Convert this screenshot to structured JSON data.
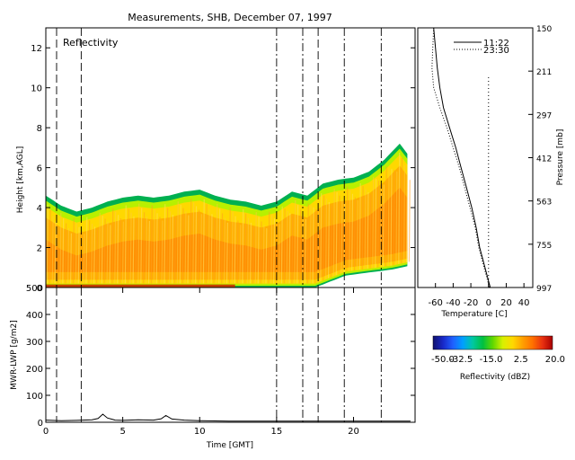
{
  "title": "Measurements, SHB, December 07, 1997",
  "chart_data": [
    {
      "type": "heatmap",
      "panel_label": "Reflectivity",
      "xlabel": "Time [GMT]",
      "ylabel": "Height [km,AGL]",
      "xlim": [
        0,
        24
      ],
      "ylim": [
        0,
        13
      ],
      "yticks": [
        "0",
        "2",
        "4",
        "6",
        "8",
        "10",
        "12"
      ],
      "cloud_top_km": [
        {
          "t": 0,
          "h": 4.6
        },
        {
          "t": 1,
          "h": 4.1
        },
        {
          "t": 2,
          "h": 3.8
        },
        {
          "t": 3,
          "h": 4.0
        },
        {
          "t": 4,
          "h": 4.3
        },
        {
          "t": 5,
          "h": 4.5
        },
        {
          "t": 6,
          "h": 4.6
        },
        {
          "t": 7,
          "h": 4.5
        },
        {
          "t": 8,
          "h": 4.6
        },
        {
          "t": 9,
          "h": 4.8
        },
        {
          "t": 10,
          "h": 4.9
        },
        {
          "t": 11,
          "h": 4.6
        },
        {
          "t": 12,
          "h": 4.4
        },
        {
          "t": 13,
          "h": 4.3
        },
        {
          "t": 14,
          "h": 4.1
        },
        {
          "t": 15,
          "h": 4.3
        },
        {
          "t": 16,
          "h": 4.8
        },
        {
          "t": 17,
          "h": 4.6
        },
        {
          "t": 18,
          "h": 5.2
        },
        {
          "t": 19,
          "h": 5.4
        },
        {
          "t": 20,
          "h": 5.5
        },
        {
          "t": 21,
          "h": 5.8
        },
        {
          "t": 22,
          "h": 6.4
        },
        {
          "t": 23,
          "h": 7.2
        },
        {
          "t": 23.7,
          "h": 6.5
        }
      ],
      "cloud_base_km": [
        {
          "t": 0,
          "h": 0
        },
        {
          "t": 17.5,
          "h": 0
        },
        {
          "t": 18.5,
          "h": 0.3
        },
        {
          "t": 19.5,
          "h": 0.6
        },
        {
          "t": 20.5,
          "h": 0.7
        },
        {
          "t": 21.5,
          "h": 0.8
        },
        {
          "t": 22.5,
          "h": 0.9
        },
        {
          "t": 23.7,
          "h": 1.1
        }
      ],
      "vertical_markers_gmt": [
        {
          "t": 0.7,
          "style": "dashed"
        },
        {
          "t": 2.3,
          "style": "dashed"
        },
        {
          "t": 15.0,
          "style": "dashdot"
        },
        {
          "t": 16.7,
          "style": "dashdot"
        },
        {
          "t": 17.7,
          "style": "dashed"
        },
        {
          "t": 19.4,
          "style": "dashdot"
        },
        {
          "t": 21.8,
          "style": "dashdot"
        }
      ]
    },
    {
      "type": "line",
      "xlabel": "Time [GMT]",
      "ylabel": "MWR-LWP [g/m2]",
      "xlim": [
        0,
        24
      ],
      "ylim": [
        0,
        500
      ],
      "xticks": [
        "0",
        "5",
        "10",
        "15",
        "20"
      ],
      "yticks": [
        "0",
        "100",
        "200",
        "300",
        "400",
        "500"
      ],
      "x": [
        0,
        1,
        2,
        3,
        3.4,
        3.7,
        4,
        4.5,
        5,
        6,
        7,
        7.5,
        7.8,
        8.2,
        9,
        10,
        11,
        12,
        13,
        14,
        15,
        16,
        17,
        18,
        19,
        20,
        21,
        22,
        23,
        23.7
      ],
      "values": [
        8,
        6,
        7,
        9,
        14,
        30,
        16,
        8,
        7,
        9,
        8,
        13,
        25,
        12,
        8,
        6,
        5,
        4,
        4,
        4,
        4,
        4,
        4,
        4,
        4,
        4,
        4,
        4,
        4,
        4
      ]
    },
    {
      "type": "line",
      "xlabel": "Temperature [C]",
      "ylabel": "Pressure [mb]",
      "xticks": [
        "-60",
        "-40",
        "-20",
        "0",
        "20",
        "40"
      ],
      "pressure_ticks": [
        "150",
        "211",
        "297",
        "412",
        "563",
        "755",
        "997"
      ],
      "series": [
        {
          "name": "11:22",
          "style": "solid",
          "height_km": [
            0,
            1,
            2,
            3,
            4,
            5,
            6,
            7,
            8,
            9,
            10,
            11,
            12,
            13
          ],
          "temperature_c": [
            2,
            -4,
            -10,
            -14,
            -19,
            -25,
            -31,
            -37,
            -44,
            -51,
            -55,
            -58,
            -60,
            -62
          ]
        },
        {
          "name": "23:30",
          "style": "dotted",
          "height_km": [
            0,
            1,
            2,
            3,
            4,
            5,
            6,
            7,
            8,
            9,
            10,
            11,
            12,
            13
          ],
          "temperature_c": [
            1,
            -5,
            -11,
            -15,
            -21,
            -27,
            -33,
            -40,
            -47,
            -55,
            -62,
            -64,
            -63,
            -62
          ]
        }
      ],
      "zero_line_c": 0
    },
    {
      "type": "colorbar",
      "label": "Reflectivity (dBZ)",
      "ticks": [
        "-50.0",
        "-32.5",
        "-15.0",
        "2.5",
        "20.0"
      ],
      "range": [
        -50,
        20
      ],
      "stops": [
        "#10106e",
        "#1828c8",
        "#2060ff",
        "#00a0ff",
        "#00c8a0",
        "#00c040",
        "#60d800",
        "#d8f000",
        "#ffd800",
        "#ffa000",
        "#ff7000",
        "#e83010",
        "#a80000"
      ]
    }
  ]
}
